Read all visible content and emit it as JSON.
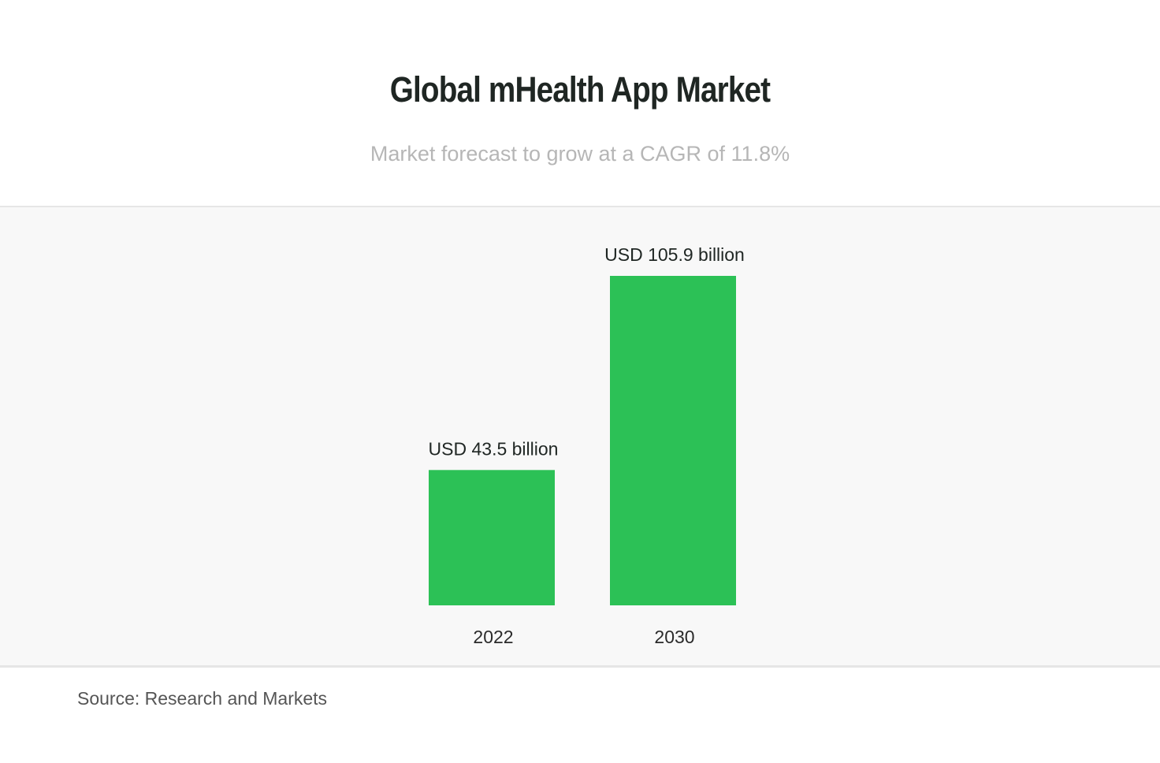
{
  "header": {
    "title": "Global mHealth App Market",
    "subtitle": "Market forecast to grow at a CAGR of 11.8%"
  },
  "footer": {
    "source": "Source: Research and Markets"
  },
  "colors": {
    "bar": "#2cc156",
    "plot_background": "#f8f8f8",
    "title": "#1f2623",
    "subtitle": "#b6b6b6"
  },
  "chart_data": {
    "type": "bar",
    "title": "Global mHealth App Market",
    "subtitle": "Market forecast to grow at a CAGR of 11.8%",
    "categories": [
      "2022",
      "2030"
    ],
    "values": [
      43.5,
      105.9
    ],
    "data_labels": [
      "USD 43.5 billion",
      "USD 105.9 billion"
    ],
    "unit": "USD billion",
    "xlabel": "",
    "ylabel": "",
    "ylim": [
      0,
      105.9
    ],
    "grid": false,
    "legend": "none",
    "source": "Source: Research and Markets"
  }
}
